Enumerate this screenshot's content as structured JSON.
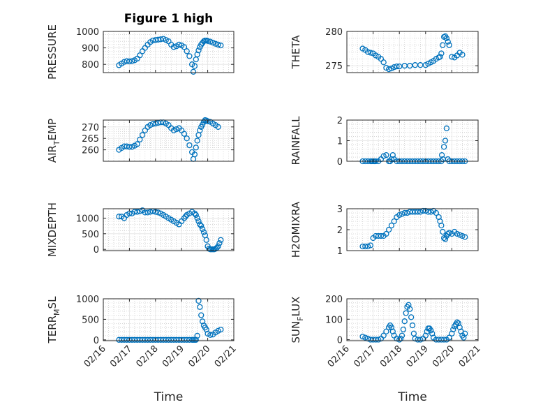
{
  "colors": {
    "marker": "#0072BD",
    "axis": "#262626",
    "grid": "#bdbdbd"
  },
  "chart_data": [
    {
      "type": "scatter",
      "id": "pressure",
      "title": "Figure 1 high",
      "ylabel_base": "PRESSURE",
      "ylabel_sub": "",
      "ylabel_rest": "",
      "xlabel": "",
      "xlim": [
        0,
        5
      ],
      "ylim": [
        750,
        1000
      ],
      "yticks": [
        800,
        900,
        1000
      ],
      "yticklabels": [
        "800",
        "900",
        "1000"
      ],
      "xticks": [
        0,
        1,
        2,
        3,
        4,
        5
      ],
      "xticklabels": [],
      "grid": true,
      "series": [
        {
          "x": [
            0.6,
            0.7,
            0.8,
            0.9,
            1.0,
            1.1,
            1.2,
            1.3,
            1.4,
            1.5,
            1.6,
            1.7,
            1.8,
            1.9,
            2.0,
            2.1,
            2.2,
            2.3,
            2.4,
            2.5,
            2.6,
            2.7,
            2.8,
            2.9,
            3.0,
            3.1,
            3.2,
            3.3,
            3.4,
            3.45,
            3.5,
            3.55,
            3.6,
            3.65,
            3.7,
            3.75,
            3.8,
            3.85,
            3.9,
            3.95,
            4.0,
            4.1,
            4.2,
            4.3,
            4.4,
            4.5
          ],
          "y": [
            795,
            805,
            815,
            820,
            818,
            820,
            825,
            835,
            855,
            880,
            900,
            920,
            935,
            945,
            948,
            950,
            952,
            955,
            948,
            940,
            920,
            905,
            910,
            920,
            915,
            905,
            880,
            850,
            800,
            755,
            790,
            830,
            860,
            885,
            905,
            920,
            930,
            940,
            945,
            945,
            942,
            938,
            932,
            925,
            920,
            915
          ]
        }
      ]
    },
    {
      "type": "scatter",
      "id": "theta",
      "title": "",
      "ylabel_base": "THETA",
      "ylabel_sub": "",
      "ylabel_rest": "",
      "xlabel": "",
      "xlim": [
        0,
        5
      ],
      "ylim": [
        274,
        280
      ],
      "yticks": [
        275,
        280
      ],
      "yticklabels": [
        "275",
        "280"
      ],
      "xticks": [
        0,
        1,
        2,
        3,
        4,
        5
      ],
      "xticklabels": [],
      "grid": true,
      "series": [
        {
          "x": [
            0.6,
            0.7,
            0.8,
            0.9,
            1.0,
            1.1,
            1.2,
            1.3,
            1.4,
            1.5,
            1.6,
            1.7,
            1.8,
            1.9,
            2.0,
            2.2,
            2.4,
            2.6,
            2.8,
            3.0,
            3.1,
            3.2,
            3.3,
            3.4,
            3.5,
            3.55,
            3.6,
            3.65,
            3.7,
            3.75,
            3.8,
            3.85,
            3.9,
            4.0,
            4.1,
            4.2,
            4.3,
            4.4
          ],
          "y": [
            277.5,
            277.3,
            277.0,
            276.9,
            276.8,
            276.5,
            276.3,
            276.0,
            275.5,
            274.7,
            274.5,
            274.6,
            274.8,
            274.9,
            274.9,
            275.0,
            275.0,
            275.1,
            275.1,
            275.1,
            275.3,
            275.5,
            275.7,
            276.0,
            276.2,
            276.3,
            276.8,
            278.0,
            279.2,
            279.3,
            279.0,
            278.5,
            278.0,
            276.3,
            276.2,
            276.5,
            276.9,
            276.6
          ]
        }
      ]
    },
    {
      "type": "scatter",
      "id": "air_temp",
      "title": "",
      "ylabel_base": "AIR",
      "ylabel_sub": "T",
      "ylabel_rest": "EMP",
      "xlabel": "",
      "xlim": [
        0,
        5
      ],
      "ylim": [
        255,
        273
      ],
      "yticks": [
        260,
        265,
        270
      ],
      "yticklabels": [
        "260",
        "265",
        "270"
      ],
      "xticks": [
        0,
        1,
        2,
        3,
        4,
        5
      ],
      "xticklabels": [],
      "grid": true,
      "series": [
        {
          "x": [
            0.6,
            0.7,
            0.8,
            0.9,
            1.0,
            1.1,
            1.2,
            1.3,
            1.4,
            1.5,
            1.6,
            1.7,
            1.8,
            1.9,
            2.0,
            2.1,
            2.2,
            2.3,
            2.4,
            2.5,
            2.6,
            2.7,
            2.8,
            2.9,
            3.0,
            3.1,
            3.2,
            3.3,
            3.4,
            3.45,
            3.5,
            3.55,
            3.6,
            3.65,
            3.7,
            3.75,
            3.8,
            3.85,
            3.9,
            3.95,
            4.0,
            4.1,
            4.2,
            4.3,
            4.4
          ],
          "y": [
            260.0,
            260.8,
            261.5,
            261.5,
            261.3,
            261.3,
            261.8,
            262.5,
            264.5,
            266.5,
            268.5,
            270.0,
            270.8,
            271.3,
            271.5,
            271.8,
            272.0,
            272.0,
            271.5,
            270.8,
            269.5,
            268.5,
            269.0,
            269.5,
            268.5,
            267.0,
            265.0,
            262.0,
            259.0,
            256.0,
            258.0,
            261.0,
            264.0,
            266.5,
            268.5,
            270.0,
            271.0,
            272.2,
            273.0,
            272.8,
            272.5,
            272.2,
            271.5,
            270.8,
            270.0
          ]
        }
      ]
    },
    {
      "type": "scatter",
      "id": "rainfall",
      "title": "",
      "ylabel_base": "RAINFALL",
      "ylabel_sub": "",
      "ylabel_rest": "",
      "xlabel": "",
      "xlim": [
        0,
        5
      ],
      "ylim": [
        0,
        2
      ],
      "yticks": [
        0,
        1,
        2
      ],
      "yticklabels": [
        "0",
        "1",
        "2"
      ],
      "xticks": [
        0,
        1,
        2,
        3,
        4,
        5
      ],
      "xticklabels": [],
      "grid": true,
      "series": [
        {
          "x": [
            0.6,
            0.7,
            0.8,
            0.9,
            0.95,
            1.0,
            1.05,
            1.1,
            1.2,
            1.3,
            1.4,
            1.5,
            1.6,
            1.65,
            1.7,
            1.75,
            1.8,
            1.9,
            2.0,
            2.1,
            2.2,
            2.3,
            2.4,
            2.5,
            2.6,
            2.7,
            2.8,
            2.9,
            3.0,
            3.1,
            3.2,
            3.3,
            3.4,
            3.5,
            3.6,
            3.62,
            3.66,
            3.7,
            3.75,
            3.8,
            3.85,
            3.9,
            4.0,
            4.1,
            4.2,
            4.3,
            4.4,
            4.5
          ],
          "y": [
            0,
            0,
            0,
            0,
            0,
            0,
            0,
            0,
            0,
            0.1,
            0.25,
            0.3,
            0,
            0,
            0.1,
            0.3,
            0.1,
            0,
            0,
            0,
            0,
            0,
            0,
            0,
            0,
            0,
            0,
            0,
            0,
            0,
            0,
            0,
            0,
            0,
            0,
            0.3,
            0.1,
            0.7,
            1.0,
            1.6,
            0.1,
            0,
            0,
            0,
            0,
            0,
            0,
            0
          ]
        }
      ]
    },
    {
      "type": "scatter",
      "id": "mixdepth",
      "title": "",
      "ylabel_base": "MIXDEPTH",
      "ylabel_sub": "",
      "ylabel_rest": "",
      "xlabel": "",
      "xlim": [
        0,
        5
      ],
      "ylim": [
        -40,
        1300
      ],
      "yticks": [
        0,
        500,
        1000
      ],
      "yticklabels": [
        "0",
        "500",
        "1000"
      ],
      "xticks": [
        0,
        1,
        2,
        3,
        4,
        5
      ],
      "xticklabels": [],
      "grid": true,
      "series": [
        {
          "x": [
            0.6,
            0.7,
            0.8,
            0.9,
            1.0,
            1.1,
            1.2,
            1.3,
            1.4,
            1.5,
            1.6,
            1.7,
            1.8,
            1.9,
            2.0,
            2.1,
            2.2,
            2.3,
            2.4,
            2.5,
            2.6,
            2.7,
            2.8,
            2.9,
            3.0,
            3.1,
            3.15,
            3.2,
            3.3,
            3.4,
            3.5,
            3.55,
            3.6,
            3.65,
            3.7,
            3.75,
            3.8,
            3.85,
            3.9,
            3.95,
            4.0,
            4.05,
            4.1,
            4.15,
            4.2,
            4.25,
            4.3,
            4.35,
            4.4,
            4.45,
            4.5
          ],
          "y": [
            1050,
            1050,
            1000,
            1100,
            1150,
            1150,
            1200,
            1200,
            1220,
            1250,
            1180,
            1180,
            1200,
            1220,
            1200,
            1180,
            1150,
            1100,
            1050,
            1000,
            950,
            900,
            850,
            800,
            900,
            1000,
            1050,
            1100,
            1150,
            1200,
            1150,
            1100,
            1000,
            900,
            800,
            750,
            650,
            550,
            450,
            300,
            100,
            20,
            0,
            0,
            0,
            0,
            20,
            50,
            100,
            200,
            300
          ]
        }
      ]
    },
    {
      "type": "scatter",
      "id": "h2omixra",
      "title": "",
      "ylabel_base": "H2OMIXRA",
      "ylabel_sub": "",
      "ylabel_rest": "",
      "xlabel": "",
      "xlim": [
        0,
        5
      ],
      "ylim": [
        1,
        3
      ],
      "yticks": [
        1,
        2,
        3
      ],
      "yticklabels": [
        "1",
        "2",
        "3"
      ],
      "xticks": [
        0,
        1,
        2,
        3,
        4,
        5
      ],
      "xticklabels": [],
      "grid": true,
      "series": [
        {
          "x": [
            0.6,
            0.7,
            0.8,
            0.9,
            1.0,
            1.1,
            1.2,
            1.3,
            1.4,
            1.5,
            1.6,
            1.7,
            1.8,
            1.9,
            2.0,
            2.1,
            2.2,
            2.3,
            2.4,
            2.5,
            2.6,
            2.7,
            2.8,
            2.9,
            3.0,
            3.1,
            3.2,
            3.3,
            3.4,
            3.5,
            3.55,
            3.6,
            3.65,
            3.7,
            3.75,
            3.8,
            3.85,
            3.9,
            4.0,
            4.1,
            4.2,
            4.3,
            4.4,
            4.5
          ],
          "y": [
            1.2,
            1.2,
            1.2,
            1.25,
            1.6,
            1.7,
            1.7,
            1.7,
            1.7,
            1.8,
            2.0,
            2.2,
            2.4,
            2.6,
            2.7,
            2.75,
            2.8,
            2.8,
            2.85,
            2.85,
            2.85,
            2.85,
            2.85,
            2.9,
            2.9,
            2.85,
            2.85,
            2.9,
            2.8,
            2.6,
            2.4,
            2.2,
            1.9,
            1.6,
            1.55,
            1.7,
            1.8,
            1.85,
            1.8,
            1.9,
            1.8,
            1.75,
            1.7,
            1.65
          ]
        }
      ]
    },
    {
      "type": "scatter",
      "id": "terr_msl",
      "title": "",
      "ylabel_base": "TERR",
      "ylabel_sub": "M",
      "ylabel_rest": "SL",
      "xlabel": "Time",
      "xlim": [
        0,
        5
      ],
      "ylim": [
        -20,
        1000
      ],
      "yticks": [
        0,
        500,
        1000
      ],
      "yticklabels": [
        "0",
        "500",
        "1000"
      ],
      "xticks": [
        0,
        1,
        2,
        3,
        4,
        5
      ],
      "xticklabels": [
        "02/16",
        "02/17",
        "02/18",
        "02/19",
        "02/20",
        "02/21"
      ],
      "grid": true,
      "series": [
        {
          "x": [
            0.6,
            0.7,
            0.8,
            0.9,
            1.0,
            1.1,
            1.2,
            1.3,
            1.4,
            1.5,
            1.6,
            1.7,
            1.8,
            1.9,
            2.0,
            2.1,
            2.2,
            2.3,
            2.4,
            2.5,
            2.6,
            2.7,
            2.8,
            2.9,
            3.0,
            3.1,
            3.2,
            3.3,
            3.4,
            3.45,
            3.5,
            3.55,
            3.6,
            3.65,
            3.7,
            3.75,
            3.8,
            3.85,
            3.9,
            3.95,
            4.0,
            4.1,
            4.2,
            4.3,
            4.4,
            4.5
          ],
          "y": [
            0,
            0,
            0,
            0,
            0,
            0,
            0,
            0,
            0,
            0,
            0,
            0,
            0,
            0,
            0,
            0,
            0,
            0,
            0,
            0,
            0,
            0,
            0,
            0,
            0,
            0,
            0,
            0,
            0,
            0,
            0,
            0,
            100,
            950,
            800,
            600,
            450,
            350,
            300,
            250,
            150,
            120,
            130,
            180,
            220,
            250
          ]
        }
      ]
    },
    {
      "type": "scatter",
      "id": "sun_flux",
      "title": "",
      "ylabel_base": "SUN",
      "ylabel_sub": "F",
      "ylabel_rest": "LUX",
      "xlabel": "Time",
      "xlim": [
        0,
        5
      ],
      "ylim": [
        -5,
        200
      ],
      "yticks": [
        0,
        100,
        200
      ],
      "yticklabels": [
        "0",
        "100",
        "200"
      ],
      "xticks": [
        0,
        1,
        2,
        3,
        4,
        5
      ],
      "xticklabels": [
        "02/16",
        "02/17",
        "02/18",
        "02/19",
        "02/20",
        "02/21"
      ],
      "grid": true,
      "series": [
        {
          "x": [
            0.6,
            0.7,
            0.8,
            0.9,
            1.0,
            1.1,
            1.2,
            1.3,
            1.4,
            1.5,
            1.6,
            1.65,
            1.7,
            1.75,
            1.8,
            1.9,
            2.0,
            2.05,
            2.1,
            2.15,
            2.2,
            2.25,
            2.3,
            2.35,
            2.4,
            2.45,
            2.5,
            2.55,
            2.6,
            2.7,
            2.8,
            2.9,
            3.0,
            3.05,
            3.1,
            3.15,
            3.2,
            3.25,
            3.3,
            3.4,
            3.5,
            3.6,
            3.7,
            3.8,
            3.9,
            4.0,
            4.05,
            4.1,
            4.15,
            4.2,
            4.25,
            4.3,
            4.35,
            4.4,
            4.45,
            4.5
          ],
          "y": [
            15,
            10,
            5,
            0,
            0,
            0,
            0,
            5,
            20,
            40,
            60,
            70,
            60,
            40,
            20,
            5,
            0,
            5,
            20,
            50,
            90,
            130,
            160,
            170,
            150,
            110,
            70,
            30,
            5,
            0,
            0,
            5,
            20,
            40,
            55,
            55,
            45,
            30,
            10,
            0,
            0,
            0,
            0,
            0,
            10,
            30,
            50,
            65,
            75,
            85,
            80,
            60,
            40,
            20,
            10,
            30
          ]
        }
      ]
    }
  ]
}
